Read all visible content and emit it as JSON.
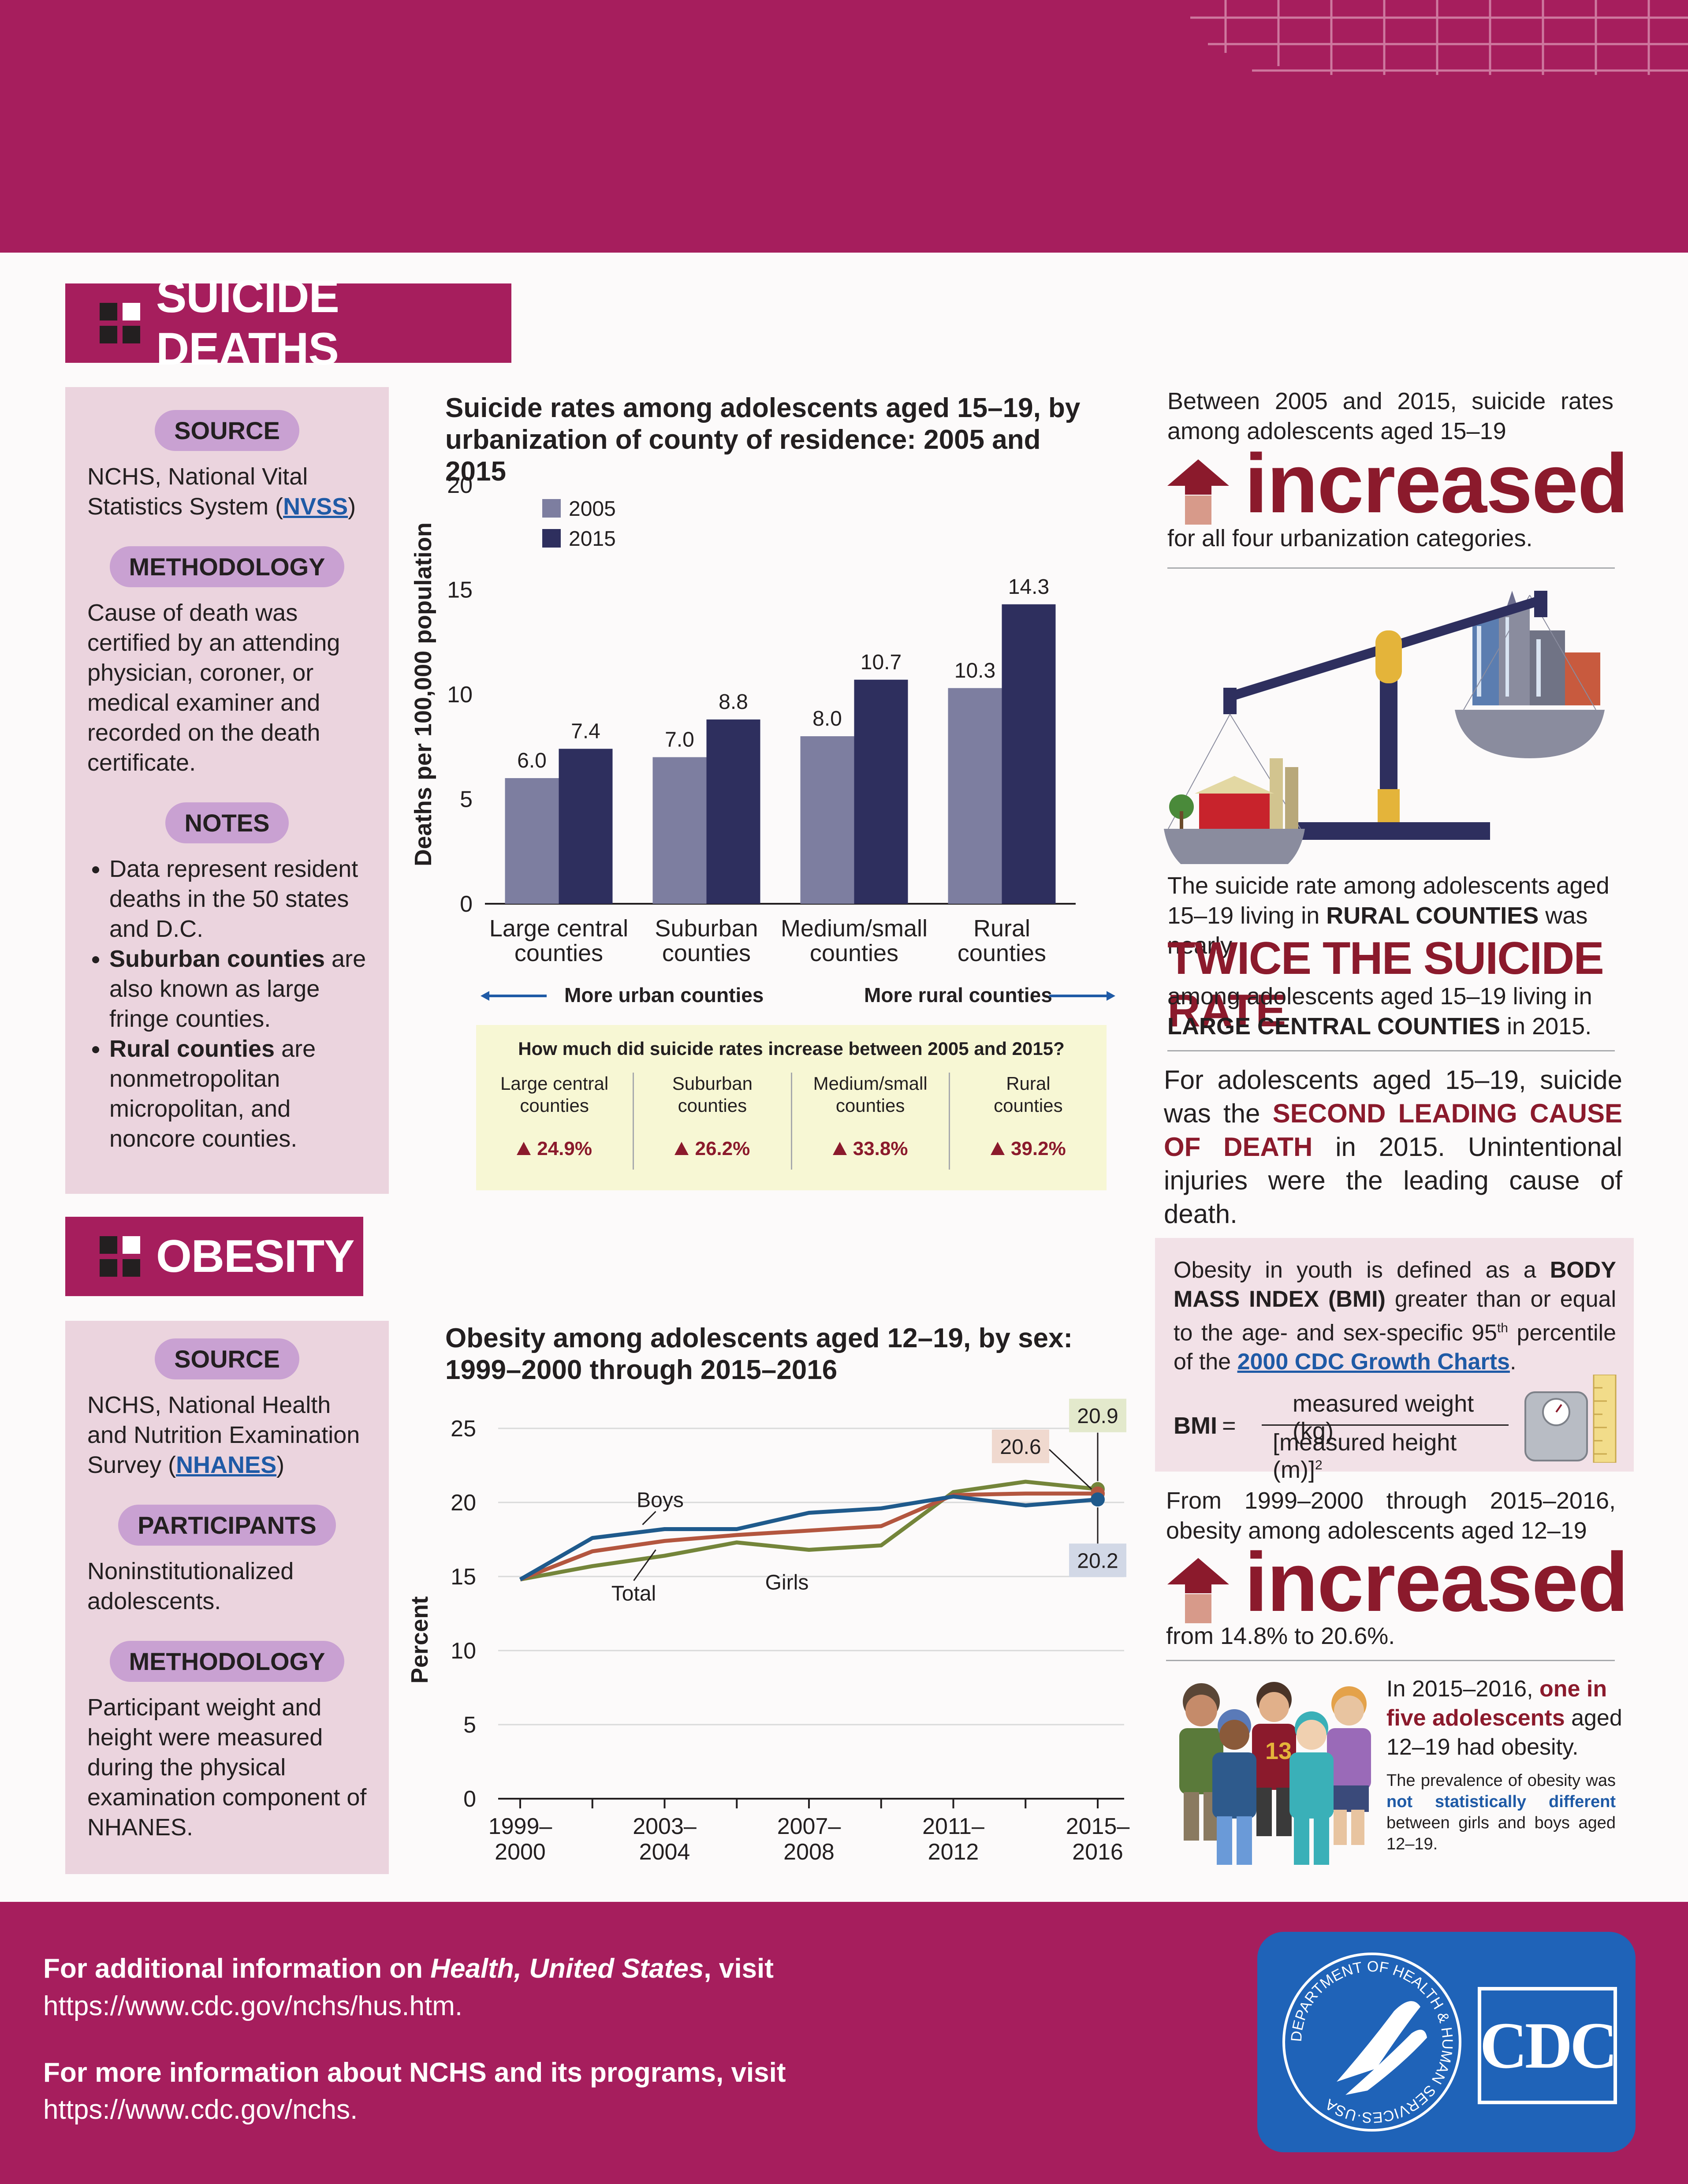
{
  "colors": {
    "brand": "#a61e5d",
    "dark_red": "#8b1a2c",
    "bar_2005": "#7d7ea0",
    "bar_2015": "#2e2f5e",
    "boys": "#1f5a8c",
    "girls": "#74853a",
    "total": "#b3563f",
    "link": "#1f5aa6"
  },
  "suicide": {
    "section_title": "SUICIDE DEATHS",
    "source_label": "SOURCE",
    "source_text_1": "NCHS, National Vital Statistics System (",
    "source_link": "NVSS",
    "source_text_2": ")",
    "methodology_label": "METHODOLOGY",
    "methodology_text": "Cause of death was certified by an attending physician, coroner, or medical examiner and recorded on the death certificate.",
    "notes_label": "NOTES",
    "note1": "Data represent resident deaths in the 50 states and D.C.",
    "note2_bold": "Suburban counties",
    "note2_rest": " are also known as large fringe counties.",
    "note3_bold": "Rural counties",
    "note3_rest": " are nonmetropolitan micropolitan, and noncore counties.",
    "more_urban": "More urban counties",
    "more_rural": "More rural counties",
    "increase_question": "How much did suicide rates increase between 2005 and 2015?",
    "increase_table": [
      {
        "label1": "Large central",
        "label2": "counties",
        "value": "24.9%"
      },
      {
        "label1": "Suburban",
        "label2": "counties",
        "value": "26.2%"
      },
      {
        "label1": "Medium/small",
        "label2": "counties",
        "value": "33.8%"
      },
      {
        "label1": "Rural",
        "label2": "counties",
        "value": "39.2%"
      }
    ],
    "fact1_top": "Between 2005 and 2015, suicide rates among adolescents aged 15–19",
    "fact1_big": "increased",
    "fact1_bottom": "for all four urbanization categories.",
    "fact2_a": "The suicide rate among adolescents aged 15–19 living in ",
    "fact2_b": "RURAL COUNTIES",
    "fact2_c": " was nearly",
    "fact2_big": "TWICE THE SUICIDE RATE",
    "fact2_d": "among adolescents aged 15–19 living in ",
    "fact2_e": "LARGE CENTRAL COUNTIES",
    "fact2_f": " in 2015.",
    "fact3_a": "For adolescents aged 15–19, suicide was the ",
    "fact3_b": "SECOND LEADING CAUSE OF DEATH",
    "fact3_c": " in 2015. Unintentional injuries were the leading cause of death."
  },
  "obesity": {
    "section_title": "OBESITY",
    "source_label": "SOURCE",
    "source_text_1": "NCHS, National Health and Nutrition Examination Survey (",
    "source_link": "NHANES",
    "source_text_2": ")",
    "participants_label": "PARTICIPANTS",
    "participants_text": "Noninstitutionalized adolescents.",
    "methodology_label": "METHODOLOGY",
    "methodology_text": "Participant weight and height were measured during the physical examination component of NHANES.",
    "def_a": "Obesity in youth is defined as a ",
    "def_b": "BODY MASS INDEX (BMI)",
    "def_c": " greater than or equal to the age- and sex-specific 95",
    "def_sup": "th",
    "def_d": " percentile of the ",
    "def_link": "2000 CDC Growth Charts",
    "def_e": ".",
    "bmi_label": "BMI",
    "bmi_eq": "=",
    "bmi_num": "measured weight (kg)",
    "bmi_den": "[measured height (m)]",
    "bmi_den_sup": "2",
    "fact1_top": "From 1999–2000 through 2015–2016, obesity among adolescents aged 12–19",
    "fact1_big": "increased",
    "fact1_bottom": "from 14.8% to 20.6%.",
    "fact2_a": "In 2015–2016, ",
    "fact2_b": "one in five adolescents",
    "fact2_c": " aged 12–19 had obesity.",
    "fact3_a": "The prevalence of obesity was ",
    "fact3_b": "not statistically different",
    "fact3_c": " between girls and boys aged 12–19.",
    "jersey_number": "13"
  },
  "footer": {
    "line1_a": "For additional information on ",
    "line1_b": "Health, United States",
    "line1_c": ", visit",
    "url1": "https://www.cdc.gov/nchs/hus.htm.",
    "line2": "For more information about NCHS and its programs, visit",
    "url2": "https://www.cdc.gov/nchs.",
    "hhs_seal_text": "DEPARTMENT OF HEALTH & HUMAN SERVICES·USA",
    "cdc_logo": "CDC"
  },
  "chart_data": [
    {
      "type": "bar",
      "title": "Suicide rates among adolescents aged 15–19, by urbanization of county of residence: 2005 and 2015",
      "ylabel": "Deaths per 100,000 population",
      "xlabel": "",
      "ylim": [
        0,
        20
      ],
      "yticks": [
        "0",
        "5",
        "10",
        "15",
        "20"
      ],
      "categories": [
        "Large central counties",
        "Suburban counties",
        "Medium/small counties",
        "Rural counties"
      ],
      "category_lines": [
        [
          "Large central",
          "counties"
        ],
        [
          "Suburban",
          "counties"
        ],
        [
          "Medium/small",
          "counties"
        ],
        [
          "Rural",
          "counties"
        ]
      ],
      "series": [
        {
          "name": "2005",
          "values": [
            6.0,
            7.0,
            8.0,
            10.3
          ],
          "labels": [
            "6.0",
            "7.0",
            "8.0",
            "10.3"
          ]
        },
        {
          "name": "2015",
          "values": [
            7.4,
            8.8,
            10.7,
            14.3
          ],
          "labels": [
            "7.4",
            "8.8",
            "10.7",
            "14.3"
          ]
        }
      ],
      "legend": "top-left",
      "grid": false
    },
    {
      "type": "line",
      "title": "Obesity among adolescents aged 12–19, by sex: 1999–2000 through 2015–2016",
      "ylabel": "Percent",
      "xlabel": "",
      "ylim": [
        0,
        25
      ],
      "yticks": [
        "0",
        "5",
        "10",
        "15",
        "20",
        "25"
      ],
      "x": [
        "1999–2000",
        "2001–2002",
        "2003–2004",
        "2005–2006",
        "2007–2008",
        "2009–2010",
        "2011–2012",
        "2013–2014",
        "2015–2016"
      ],
      "x_tick_labels": [
        [
          "1999–",
          "2000"
        ],
        [
          "2003–",
          "2004"
        ],
        [
          "2007–",
          "2008"
        ],
        [
          "2011–",
          "2012"
        ],
        [
          "2015–",
          "2016"
        ]
      ],
      "series": [
        {
          "name": "Boys",
          "values": [
            14.8,
            17.6,
            18.2,
            18.2,
            19.3,
            19.6,
            20.4,
            19.8,
            20.2
          ]
        },
        {
          "name": "Total",
          "values": [
            14.8,
            16.7,
            17.4,
            17.8,
            18.1,
            18.4,
            20.5,
            20.6,
            20.6
          ]
        },
        {
          "name": "Girls",
          "values": [
            14.8,
            15.7,
            16.4,
            17.3,
            16.8,
            17.1,
            20.7,
            21.4,
            20.9
          ]
        }
      ],
      "end_labels": {
        "Boys": "20.2",
        "Total": "20.6",
        "Girls": "20.9"
      },
      "grid": true
    }
  ]
}
